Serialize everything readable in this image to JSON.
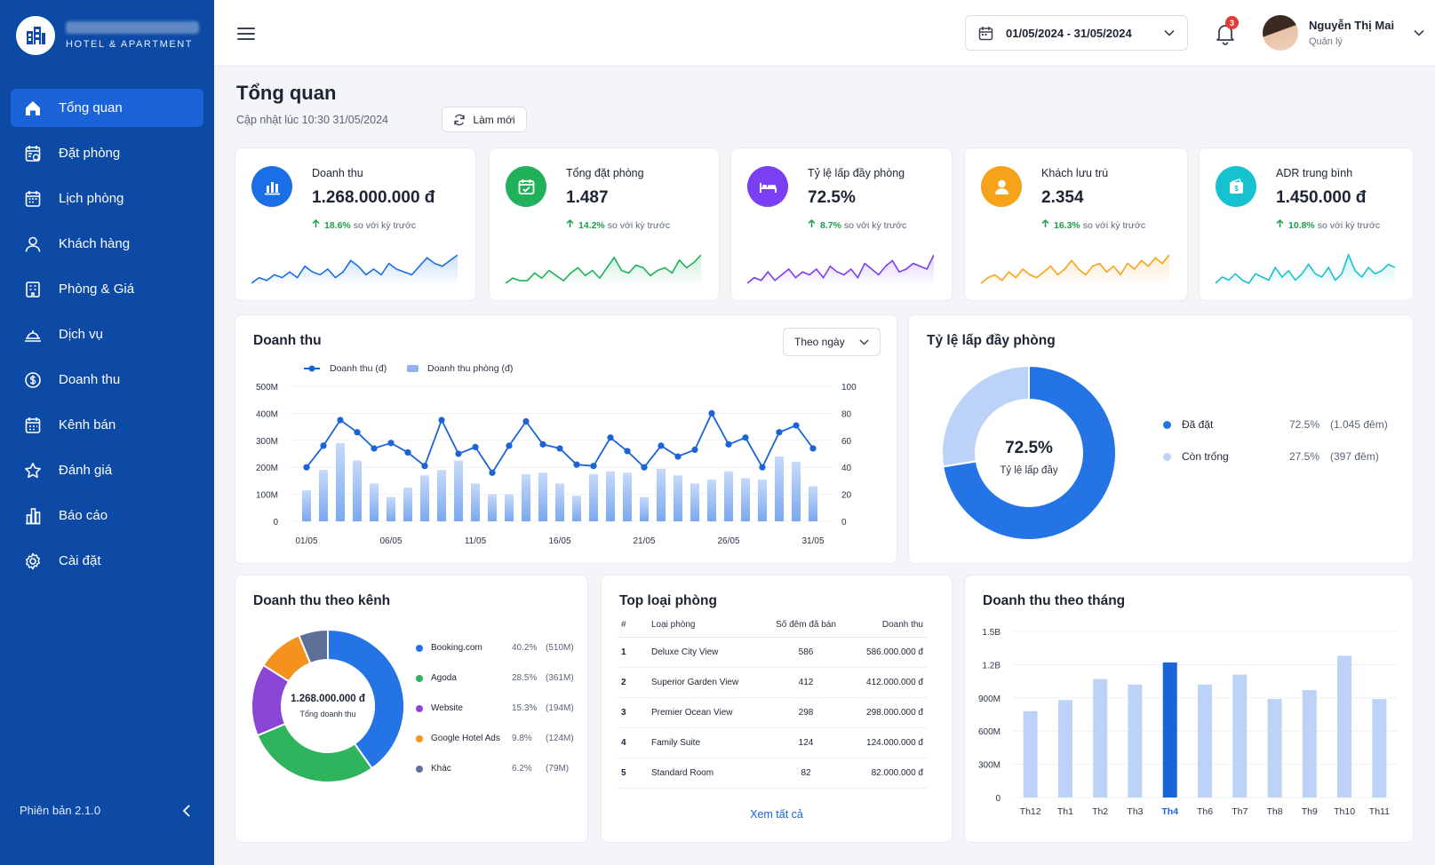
{
  "brand": {
    "subtitle": "HOTEL & APARTMENT"
  },
  "sidebar": {
    "items": [
      {
        "label": "Tổng quan",
        "icon": "home-icon"
      },
      {
        "label": "Đặt phòng",
        "icon": "booking-icon"
      },
      {
        "label": "Lịch phòng",
        "icon": "calendar-icon"
      },
      {
        "label": "Khách hàng",
        "icon": "user-icon"
      },
      {
        "label": "Phòng & Giá",
        "icon": "room-price-icon"
      },
      {
        "label": "Dịch vụ",
        "icon": "service-icon"
      },
      {
        "label": "Doanh thu",
        "icon": "dollar-icon"
      },
      {
        "label": "Kênh bán",
        "icon": "channel-icon"
      },
      {
        "label": "Đánh giá",
        "icon": "star-icon"
      },
      {
        "label": "Báo cáo",
        "icon": "report-icon"
      },
      {
        "label": "Cài đặt",
        "icon": "gear-icon"
      }
    ],
    "version": "Phiên bản 2.1.0"
  },
  "header": {
    "date_range": "01/05/2024 - 31/05/2024",
    "notification_count": "3",
    "user_name": "Nguyễn Thị Mai",
    "user_role": "Quản lý"
  },
  "page": {
    "title": "Tổng quan",
    "updated": "Cập nhật lúc 10:30 31/05/2024",
    "refresh_label": "Làm mới"
  },
  "kpis": [
    {
      "label": "Doanh thu",
      "value": "1.268.000.000 đ",
      "change": "18.6%",
      "change_suffix": "so với kỳ trước",
      "color": "#1a6fe6",
      "icon": "bar-chart-icon"
    },
    {
      "label": "Tổng đặt phòng",
      "value": "1.487",
      "change": "14.2%",
      "change_suffix": "so với kỳ trước",
      "color": "#22b15b",
      "icon": "calendar-check-icon"
    },
    {
      "label": "Tỷ lệ lấp đầy phòng",
      "value": "72.5%",
      "change": "8.7%",
      "change_suffix": "so với kỳ trước",
      "color": "#7a3ff2",
      "icon": "bed-icon"
    },
    {
      "label": "Khách lưu trú",
      "value": "2.354",
      "change": "16.3%",
      "change_suffix": "so với kỳ trước",
      "color": "#f7a21b",
      "icon": "guest-icon"
    },
    {
      "label": "ADR trung bình",
      "value": "1.450.000 đ",
      "change": "10.8%",
      "change_suffix": "so với kỳ trước",
      "color": "#16c2cf",
      "icon": "wallet-icon"
    }
  ],
  "revenue_chart": {
    "title": "Doanh thu",
    "dropdown": "Theo ngày",
    "legend": [
      "Doanh thu (đ)",
      "Doanh thu phòng (đ)"
    ]
  },
  "occupancy": {
    "title": "Tỷ lệ lấp đầy phòng",
    "center_value": "72.5%",
    "center_label": "Tỷ lệ lấp đầy",
    "items": [
      {
        "label": "Đã đặt",
        "pct": "72.5%",
        "detail": "(1.045 đêm)",
        "color": "#2474e5"
      },
      {
        "label": "Còn trống",
        "pct": "27.5%",
        "detail": "(397 đêm)",
        "color": "#bcd3f7"
      }
    ]
  },
  "channels": {
    "title": "Doanh thu theo kênh",
    "center_value": "1.268.000.000 đ",
    "center_label": "Tổng doanh thu",
    "items": [
      {
        "label": "Booking.com",
        "pct": "40.2%",
        "amount": "(510M)",
        "color": "#2474e5"
      },
      {
        "label": "Agoda",
        "pct": "28.5%",
        "amount": "(361M)",
        "color": "#2fb35c"
      },
      {
        "label": "Website",
        "pct": "15.3%",
        "amount": "(194M)",
        "color": "#8a45d6"
      },
      {
        "label": "Google Hotel Ads",
        "pct": "9.8%",
        "amount": "(124M)",
        "color": "#f5921e"
      },
      {
        "label": "Khác",
        "pct": "6.2%",
        "amount": "(79M)",
        "color": "#5e7097"
      }
    ]
  },
  "top_rooms": {
    "title": "Top loại phòng",
    "columns": [
      "#",
      "Loại phòng",
      "Số đêm đã bán",
      "Doanh thu"
    ],
    "rows": [
      [
        "1",
        "Deluxe City View",
        "586",
        "586.000.000 đ"
      ],
      [
        "2",
        "Superior Garden View",
        "412",
        "412.000.000 đ"
      ],
      [
        "3",
        "Premier Ocean View",
        "298",
        "298.000.000 đ"
      ],
      [
        "4",
        "Family Suite",
        "124",
        "124.000.000 đ"
      ],
      [
        "5",
        "Standard Room",
        "82",
        "82.000.000 đ"
      ]
    ],
    "see_all": "Xem tất cả"
  },
  "chart_data": [
    {
      "type": "line",
      "title": "Doanh thu",
      "x": [
        "01/05",
        "02/05",
        "03/05",
        "04/05",
        "05/05",
        "06/05",
        "07/05",
        "08/05",
        "09/05",
        "10/05",
        "11/05",
        "12/05",
        "13/05",
        "14/05",
        "15/05",
        "16/05",
        "17/05",
        "18/05",
        "19/05",
        "20/05",
        "21/05",
        "22/05",
        "23/05",
        "24/05",
        "25/05",
        "26/05",
        "27/05",
        "28/05",
        "29/05",
        "30/05",
        "31/05"
      ],
      "x_tick_labels": [
        "01/05",
        "06/05",
        "11/05",
        "16/05",
        "21/05",
        "26/05",
        "31/05"
      ],
      "y_left_ticks": [
        "0",
        "100M",
        "200M",
        "300M",
        "400M",
        "500M"
      ],
      "y_right_ticks": [
        "0",
        "20",
        "40",
        "60",
        "80",
        "100"
      ],
      "ylim_left": [
        0,
        500
      ],
      "ylim_right": [
        0,
        100
      ],
      "series": [
        {
          "name": "Doanh thu (đ)",
          "axis": "left",
          "type": "line",
          "color": "#1a63d8",
          "values": [
            200,
            280,
            375,
            330,
            270,
            290,
            255,
            205,
            375,
            250,
            275,
            180,
            280,
            370,
            285,
            270,
            210,
            205,
            310,
            260,
            200,
            280,
            240,
            265,
            400,
            285,
            310,
            200,
            330,
            355,
            270
          ]
        },
        {
          "name": "Doanh thu phòng (đ)",
          "axis": "right",
          "type": "bar",
          "color": "#7aa8ef",
          "values": [
            23,
            38,
            58,
            45,
            28,
            18,
            25,
            34,
            38,
            45,
            28,
            20,
            20,
            35,
            36,
            28,
            19,
            35,
            37,
            36,
            18,
            39,
            34,
            28,
            31,
            37,
            32,
            31,
            48,
            44,
            26
          ]
        }
      ]
    },
    {
      "type": "pie",
      "title": "Tỷ lệ lấp đầy phòng",
      "labels": [
        "Đã đặt",
        "Còn trống"
      ],
      "values": [
        72.5,
        27.5
      ]
    },
    {
      "type": "pie",
      "title": "Doanh thu theo kênh",
      "labels": [
        "Booking.com",
        "Agoda",
        "Website",
        "Google Hotel Ads",
        "Khác"
      ],
      "values": [
        40.2,
        28.5,
        15.3,
        9.8,
        6.2
      ]
    },
    {
      "type": "bar",
      "title": "Doanh thu theo tháng",
      "categories": [
        "Th12",
        "Th1",
        "Th2",
        "Th3",
        "Th4",
        "Th6",
        "Th7",
        "Th8",
        "Th9",
        "Th10",
        "Th11"
      ],
      "values": [
        0.78,
        0.88,
        1.07,
        1.02,
        1.22,
        1.02,
        1.11,
        0.89,
        0.97,
        1.28,
        0.89
      ],
      "y_ticks": [
        "0",
        "300M",
        "600M",
        "900M",
        "1.2B",
        "1.5B"
      ],
      "ylim": [
        0,
        1.5
      ],
      "highlight": "Th4",
      "color": "#bcd3f7",
      "highlight_color": "#1a63d8"
    }
  ]
}
